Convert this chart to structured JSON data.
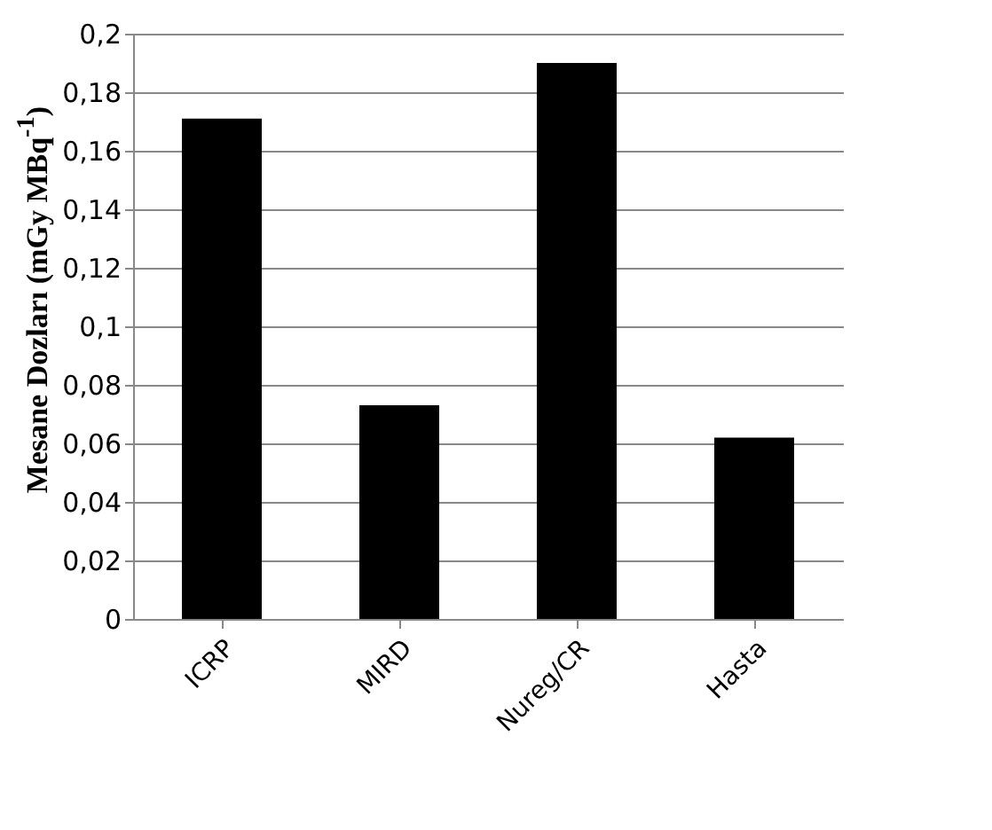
{
  "chart_data": {
    "type": "bar",
    "ylabel": "Mesane Dozları (mGy MBq$^{-1}$)",
    "categories": [
      "ICRP",
      "MIRD",
      "Nureg/CR",
      "Hasta"
    ],
    "values": [
      0.171,
      0.073,
      0.19,
      0.062
    ],
    "color": "#000000",
    "ylim": [
      0,
      0.2
    ],
    "yticks": [
      {
        "value": 0,
        "label": "0"
      },
      {
        "value": 0.02,
        "label": "0,02"
      },
      {
        "value": 0.04,
        "label": "0,04"
      },
      {
        "value": 0.06,
        "label": "0,06"
      },
      {
        "value": 0.08,
        "label": "0,08"
      },
      {
        "value": 0.1,
        "label": "0,1"
      },
      {
        "value": 0.12,
        "label": "0,12"
      },
      {
        "value": 0.14,
        "label": "0,14"
      },
      {
        "value": 0.16,
        "label": "0,16"
      },
      {
        "value": 0.18,
        "label": "0,18"
      },
      {
        "value": 0.2,
        "label": "0,2"
      }
    ],
    "grid": "y"
  }
}
